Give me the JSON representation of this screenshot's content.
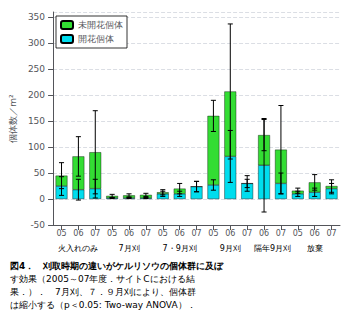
{
  "chart_data": {
    "type": "bar",
    "stacked": true,
    "ylabel": "個体数／m²",
    "groups": [
      {
        "label": "火入れのみ",
        "categories": [
          "05",
          "06",
          "07"
        ]
      },
      {
        "label": "7月刈",
        "categories": [
          "05",
          "06",
          "07"
        ]
      },
      {
        "label": "7・9月刈",
        "categories": [
          "05",
          "06",
          "07"
        ]
      },
      {
        "label": "9月刈",
        "categories": [
          "05",
          "06",
          "07"
        ]
      },
      {
        "label": "隔年9月刈",
        "categories": [
          "06",
          "07"
        ]
      },
      {
        "label": "放棄",
        "categories": [
          "05",
          "06",
          "07"
        ]
      }
    ],
    "series": [
      {
        "name": "開花個体",
        "color": "#00ddee",
        "values": [
          25,
          18,
          20,
          2,
          2,
          2,
          10,
          10,
          24,
          27,
          82,
          30,
          65,
          30,
          10,
          13,
          20
        ],
        "errors": [
          18,
          20,
          18,
          1,
          1,
          1,
          5,
          5,
          10,
          10,
          50,
          8,
          90,
          20,
          5,
          8,
          10
        ]
      },
      {
        "name": "未開花個体",
        "color": "#33dd33",
        "values": [
          20,
          64,
          70,
          4,
          5,
          6,
          3,
          10,
          0,
          133,
          125,
          0,
          58,
          65,
          6,
          19,
          5
        ],
        "errors": [
          25,
          38,
          80,
          3,
          3,
          3,
          5,
          10,
          10,
          30,
          130,
          15,
          30,
          85,
          5,
          15,
          12
        ]
      }
    ],
    "ylim": [
      -50,
      360
    ],
    "yticks": [
      -50,
      0,
      50,
      100,
      150,
      200,
      250,
      300,
      350
    ],
    "grid": true,
    "legend": "upper left",
    "caption": [
      "図4．　刈取時期の違いがケルリソウの個体群に及ぼ",
      "す効果（2005～07年度．サイトCにおける結",
      "果．）．　7月刈、７．９月刈により、個体群",
      "は縮小する（p＜0.05: Two-way ANOVA）．"
    ]
  }
}
